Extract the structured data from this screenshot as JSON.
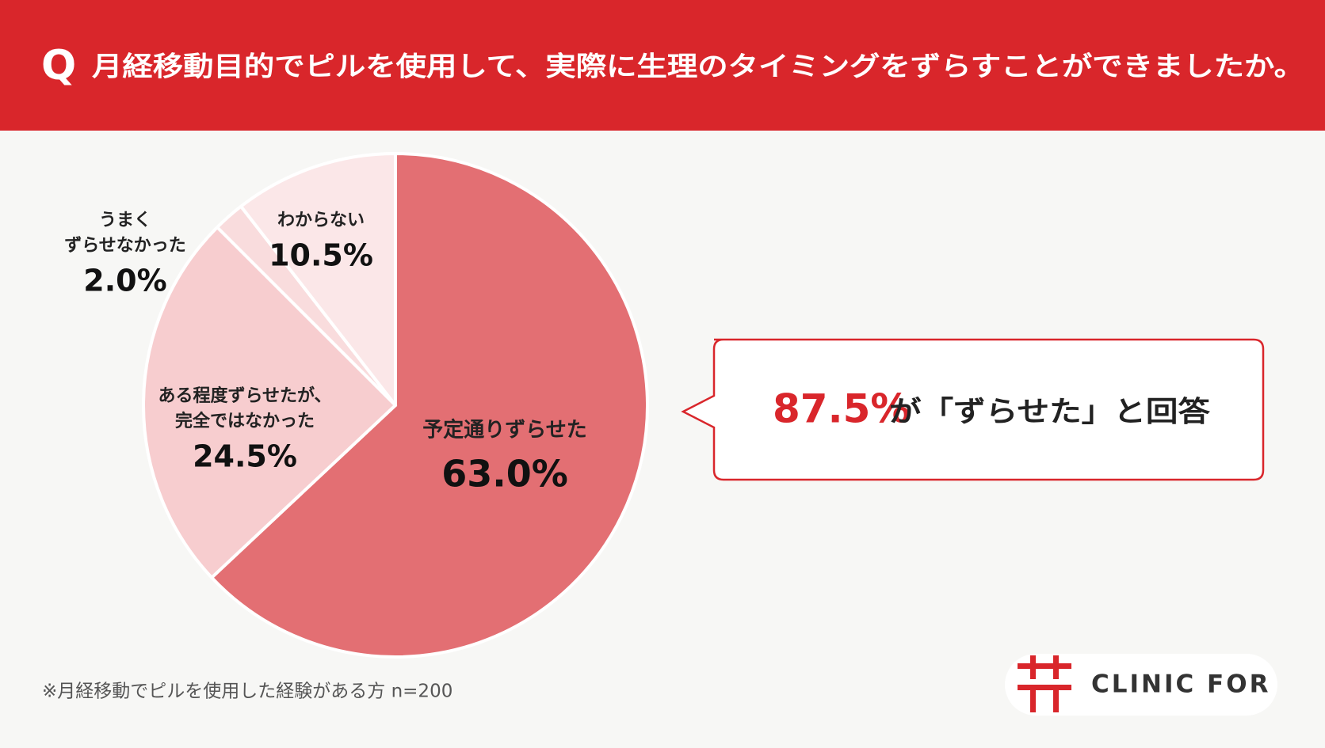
{
  "header": {
    "q": "Q",
    "title": "月経移動目的でピルを使用して、実際に生理のタイミングをずらすことができましたか。"
  },
  "chart_data": {
    "type": "pie",
    "categories": [
      [
        "予定通りずらせた"
      ],
      [
        "ある程度ずらせたが、",
        "完全ではなかった"
      ],
      [
        "うまく",
        "ずらせなかった"
      ],
      [
        "わからない"
      ]
    ],
    "values": [
      63.0,
      24.5,
      2.0,
      10.5
    ],
    "value_labels": [
      "63.0%",
      "24.5%",
      "2.0%",
      "10.5%"
    ],
    "colors": [
      "#e36f73",
      "#f7cdcf",
      "#f9dcdd",
      "#fbe7e8"
    ]
  },
  "callout": {
    "highlight": "87.5%",
    "text": "が「ずらせた」と回答"
  },
  "footnote": "※月経移動でピルを使用した経験がある方 n=200",
  "logo": "CLINIC FOR"
}
